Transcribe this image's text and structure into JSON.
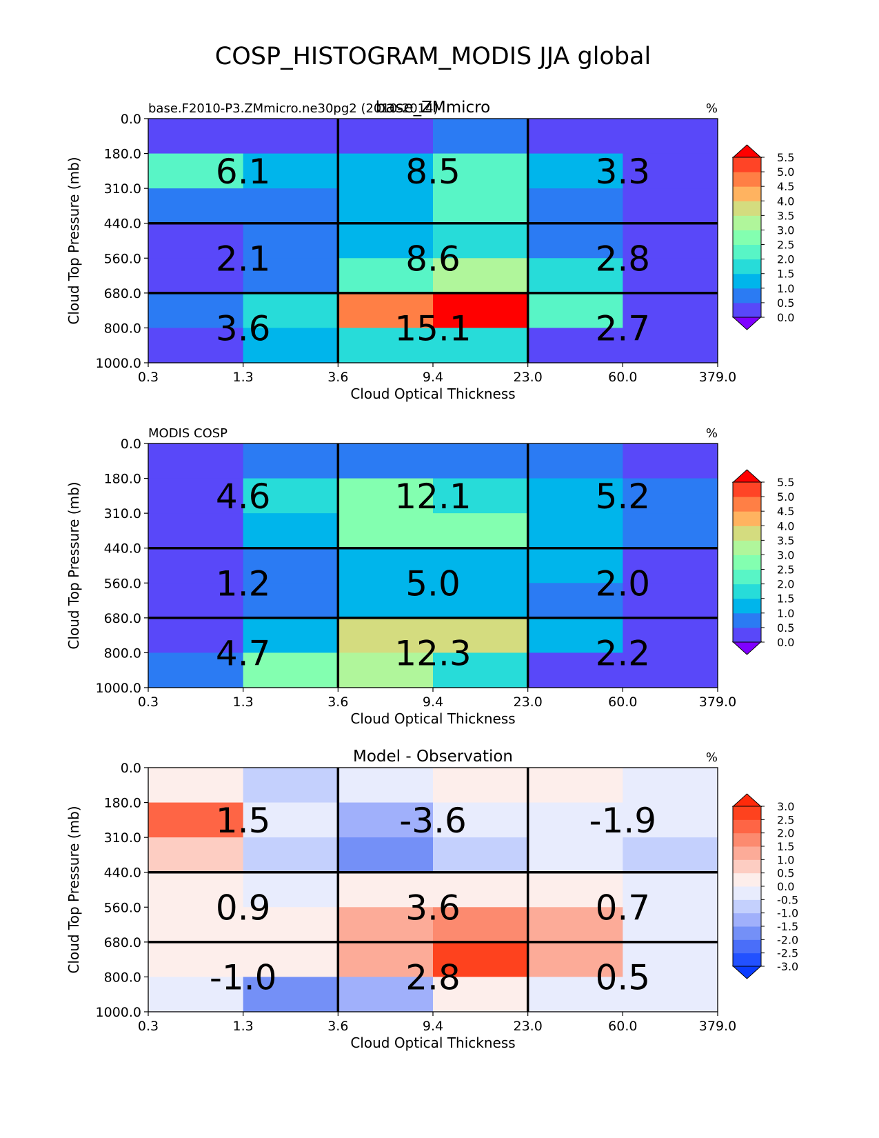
{
  "figure": {
    "title": "COSP_HISTOGRAM_MODIS JJA global"
  },
  "chart_data": [
    {
      "type": "heatmap",
      "left_title": "base.F2010-P3.ZMmicro.ne30pg2 (2010-2014)",
      "center_title": "base_ZMmicro",
      "units": "%",
      "xlabel": "Cloud Optical Thickness",
      "ylabel": "Cloud Top Pressure (mb)",
      "x_ticks": [
        "0.3",
        "1.3",
        "3.6",
        "9.4",
        "23.0",
        "60.0",
        "379.0"
      ],
      "y_ticks": [
        "0.0",
        "180.0",
        "310.0",
        "440.0",
        "560.0",
        "680.0",
        "800.0",
        "1000.0"
      ],
      "cells": [
        [
          0.1,
          0.1,
          0.1,
          0.6,
          0.1,
          0.1
        ],
        [
          2.2,
          1.4,
          1.4,
          2.3,
          1.4,
          0.2
        ],
        [
          0.7,
          0.7,
          1.4,
          2.3,
          0.8,
          0.2
        ],
        [
          0.1,
          0.7,
          1.4,
          1.9,
          0.7,
          0.2
        ],
        [
          0.2,
          0.7,
          2.2,
          3.3,
          1.9,
          0.2
        ],
        [
          0.7,
          1.9,
          4.7,
          6.0,
          2.3,
          0.2
        ],
        [
          0.2,
          1.4,
          1.9,
          1.9,
          0.2,
          0.2
        ]
      ],
      "group_values": [
        [
          "6.1",
          "8.5",
          "3.3"
        ],
        [
          "2.1",
          "8.6",
          "2.8"
        ],
        [
          "3.6",
          "15.1",
          "2.7"
        ]
      ],
      "colorbar": {
        "levels": [
          0.0,
          0.5,
          1.0,
          1.5,
          2.0,
          2.5,
          3.0,
          3.5,
          4.0,
          4.5,
          5.0,
          5.5
        ],
        "labels": [
          "0.0",
          "0.5",
          "1.0",
          "1.5",
          "2.0",
          "2.5",
          "3.0",
          "3.5",
          "4.0",
          "4.5",
          "5.0",
          "5.5"
        ],
        "under_color": "#7f00ff",
        "over_color": "#ff0000",
        "colors": [
          "#5948f9",
          "#2b7bf3",
          "#00b5eb",
          "#27dcd9",
          "#58f5c6",
          "#83ffb0",
          "#b0f69b",
          "#d4dc7f",
          "#ffb360",
          "#ff7f45",
          "#ff4426"
        ]
      }
    },
    {
      "type": "heatmap",
      "left_title": "MODIS COSP",
      "center_title": "",
      "units": "%",
      "xlabel": "Cloud Optical Thickness",
      "ylabel": "Cloud Top Pressure (mb)",
      "x_ticks": [
        "0.3",
        "1.3",
        "3.6",
        "9.4",
        "23.0",
        "60.0",
        "379.0"
      ],
      "y_ticks": [
        "0.0",
        "180.0",
        "310.0",
        "440.0",
        "560.0",
        "680.0",
        "800.0",
        "1000.0"
      ],
      "cells": [
        [
          0.2,
          0.7,
          0.7,
          0.7,
          0.7,
          0.2
        ],
        [
          0.2,
          1.9,
          2.8,
          1.9,
          1.4,
          0.7
        ],
        [
          0.2,
          1.4,
          2.8,
          2.8,
          1.4,
          0.7
        ],
        [
          0.2,
          0.7,
          1.4,
          1.4,
          1.4,
          0.2
        ],
        [
          0.2,
          0.7,
          1.4,
          1.4,
          0.7,
          0.2
        ],
        [
          0.2,
          1.4,
          3.6,
          3.6,
          1.4,
          0.2
        ],
        [
          0.7,
          2.8,
          3.3,
          1.9,
          0.2,
          0.2
        ]
      ],
      "group_values": [
        [
          "4.6",
          "12.1",
          "5.2"
        ],
        [
          "1.2",
          "5.0",
          "2.0"
        ],
        [
          "4.7",
          "12.3",
          "2.2"
        ]
      ],
      "colorbar": {
        "levels": [
          0.0,
          0.5,
          1.0,
          1.5,
          2.0,
          2.5,
          3.0,
          3.5,
          4.0,
          4.5,
          5.0,
          5.5
        ],
        "labels": [
          "0.0",
          "0.5",
          "1.0",
          "1.5",
          "2.0",
          "2.5",
          "3.0",
          "3.5",
          "4.0",
          "4.5",
          "5.0",
          "5.5"
        ],
        "under_color": "#7f00ff",
        "over_color": "#ff0000",
        "colors": [
          "#5948f9",
          "#2b7bf3",
          "#00b5eb",
          "#27dcd9",
          "#58f5c6",
          "#83ffb0",
          "#b0f69b",
          "#d4dc7f",
          "#ffb360",
          "#ff7f45",
          "#ff4426"
        ]
      }
    },
    {
      "type": "heatmap",
      "left_title": "",
      "center_title": "Model - Observation",
      "units": "%",
      "xlabel": "Cloud Optical Thickness",
      "ylabel": "Cloud Top Pressure (mb)",
      "x_ticks": [
        "0.3",
        "1.3",
        "3.6",
        "9.4",
        "23.0",
        "60.0",
        "379.0"
      ],
      "y_ticks": [
        "0.0",
        "180.0",
        "310.0",
        "440.0",
        "560.0",
        "680.0",
        "800.0",
        "1000.0"
      ],
      "cells": [
        [
          0.2,
          -0.7,
          -0.2,
          0.2,
          0.2,
          -0.2
        ],
        [
          2.0,
          -0.2,
          -1.2,
          -0.2,
          -0.2,
          -0.2
        ],
        [
          0.7,
          -0.7,
          -1.7,
          -0.7,
          -0.2,
          -0.7
        ],
        [
          0.2,
          -0.2,
          0.2,
          0.2,
          0.2,
          -0.2
        ],
        [
          0.2,
          0.2,
          1.2,
          1.7,
          1.2,
          -0.2
        ],
        [
          0.2,
          0.2,
          1.2,
          2.7,
          1.2,
          -0.2
        ],
        [
          -0.2,
          -1.7,
          -1.2,
          0.2,
          -0.2,
          -0.2
        ]
      ],
      "group_values": [
        [
          "1.5",
          "-3.6",
          "-1.9"
        ],
        [
          "0.9",
          "3.6",
          "0.7"
        ],
        [
          "-1.0",
          "2.8",
          "0.5"
        ]
      ],
      "colorbar": {
        "levels": [
          -3.0,
          -2.5,
          -2.0,
          -1.5,
          -1.0,
          -0.5,
          0.0,
          0.5,
          1.0,
          1.5,
          2.0,
          2.5,
          3.0
        ],
        "labels": [
          "-3.0",
          "-2.5",
          "-2.0",
          "-1.5",
          "-1.0",
          "-0.5",
          "0.0",
          "0.5",
          "1.0",
          "1.5",
          "2.0",
          "2.5",
          "3.0"
        ],
        "under_color": "#0a3cff",
        "over_color": "#ff2a0a",
        "colors": [
          "#2251ff",
          "#4a6ef9",
          "#7490f7",
          "#a0b0fb",
          "#c4d0fd",
          "#e8ecfd",
          "#fdeeeb",
          "#fdcdc2",
          "#fcab98",
          "#fc8a6f",
          "#fe6545",
          "#fe421e"
        ]
      }
    }
  ]
}
